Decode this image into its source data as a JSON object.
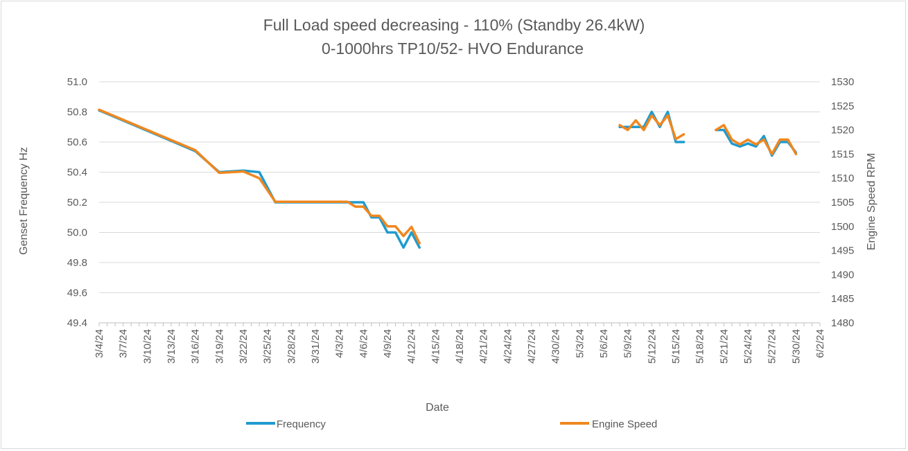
{
  "chart_data": {
    "type": "line",
    "title": "Full Load speed decreasing - 110% (Standby 26.4kW)",
    "subtitle": "0-1000hrs TP10/52- HVO Endurance",
    "xlabel": "Date",
    "ylabel": "Genset Frequency Hz",
    "y2label": "Engine Speed RPM",
    "ylim": [
      49.4,
      51.0
    ],
    "y2lim": [
      1480,
      1530
    ],
    "yticks": [
      "51.0",
      "50.8",
      "50.6",
      "50.4",
      "50.2",
      "50.0",
      "49.8",
      "49.6",
      "49.4"
    ],
    "y2ticks": [
      "1530",
      "1525",
      "1520",
      "1515",
      "1510",
      "1505",
      "1500",
      "1495",
      "1490",
      "1485",
      "1480"
    ],
    "xstart": "3/4/24",
    "xend": "6/2/24",
    "xticks": [
      "3/4/24",
      "3/7/24",
      "3/10/24",
      "3/13/24",
      "3/16/24",
      "3/19/24",
      "3/22/24",
      "3/25/24",
      "3/28/24",
      "3/31/24",
      "4/3/24",
      "4/6/24",
      "4/9/24",
      "4/12/24",
      "4/15/24",
      "4/18/24",
      "4/21/24",
      "4/24/24",
      "4/27/24",
      "4/30/24",
      "5/3/24",
      "5/6/24",
      "5/9/24",
      "5/12/24",
      "5/15/24",
      "5/18/24",
      "5/21/24",
      "5/24/24",
      "5/27/24",
      "5/30/24",
      "6/2/24"
    ],
    "series": [
      {
        "name": "Frequency",
        "axis": "left",
        "color": "#1f9bcf",
        "segments": [
          [
            [
              0,
              50.81
            ],
            [
              12,
              50.54
            ],
            [
              15,
              50.4
            ],
            [
              18,
              50.41
            ],
            [
              20,
              50.4
            ],
            [
              22,
              50.2
            ],
            [
              31,
              50.2
            ],
            [
              33,
              50.2
            ],
            [
              34,
              50.1
            ],
            [
              35,
              50.1
            ],
            [
              36,
              50.0
            ],
            [
              37,
              50.0
            ],
            [
              38,
              49.9
            ],
            [
              39,
              50.0
            ],
            [
              40,
              49.9
            ]
          ],
          [
            [
              65,
              50.7
            ],
            [
              66,
              50.7
            ],
            [
              67,
              50.7
            ],
            [
              68,
              50.7
            ],
            [
              69,
              50.8
            ],
            [
              70,
              50.7
            ],
            [
              71,
              50.8
            ],
            [
              72,
              50.6
            ],
            [
              73,
              50.6
            ]
          ],
          [
            [
              77,
              50.68
            ],
            [
              78,
              50.68
            ],
            [
              79,
              50.59
            ],
            [
              80,
              50.57
            ],
            [
              81,
              50.59
            ],
            [
              82,
              50.57
            ],
            [
              83,
              50.64
            ],
            [
              84,
              50.51
            ],
            [
              85,
              50.6
            ],
            [
              86,
              50.6
            ],
            [
              87,
              50.53
            ]
          ]
        ]
      },
      {
        "name": "Engine Speed",
        "axis": "right",
        "color": "#f0871e",
        "segments": [
          [
            [
              0,
              1524.2
            ],
            [
              12,
              1515.8
            ],
            [
              15,
              1511.1
            ],
            [
              18,
              1511.4
            ],
            [
              20,
              1510.0
            ],
            [
              22,
              1505.1
            ],
            [
              31,
              1505.1
            ],
            [
              32,
              1504.1
            ],
            [
              33,
              1504.1
            ],
            [
              34,
              1502.2
            ],
            [
              35,
              1502.2
            ],
            [
              36,
              1500.0
            ],
            [
              37,
              1500.0
            ],
            [
              38,
              1498.0
            ],
            [
              39,
              1499.9
            ],
            [
              40,
              1496.5
            ]
          ],
          [
            [
              65,
              1521.0
            ],
            [
              66,
              1520.0
            ],
            [
              67,
              1522.0
            ],
            [
              68,
              1520.0
            ],
            [
              69,
              1523.0
            ],
            [
              70,
              1521.0
            ],
            [
              71,
              1523.0
            ],
            [
              72,
              1518.1
            ],
            [
              73,
              1519.1
            ]
          ],
          [
            [
              77,
              1520.0
            ],
            [
              78,
              1521.0
            ],
            [
              79,
              1518.0
            ],
            [
              80,
              1517.0
            ],
            [
              81,
              1518.0
            ],
            [
              82,
              1517.0
            ],
            [
              83,
              1518.0
            ],
            [
              84,
              1515.0
            ],
            [
              85,
              1518.0
            ],
            [
              86,
              1518.0
            ],
            [
              87,
              1515.0
            ]
          ]
        ]
      }
    ],
    "legend": {
      "position": "bottom",
      "entries": [
        "Frequency",
        "Engine Speed"
      ]
    }
  }
}
